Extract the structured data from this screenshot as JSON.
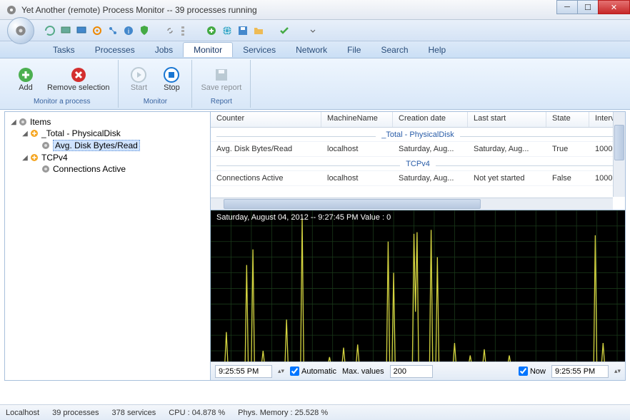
{
  "window": {
    "title": "Yet Another (remote) Process Monitor -- 39 processes running"
  },
  "menubar": {
    "items": [
      "Tasks",
      "Processes",
      "Jobs",
      "Monitor",
      "Services",
      "Network",
      "File",
      "Search",
      "Help"
    ],
    "active_index": 3
  },
  "ribbon": {
    "groups": [
      {
        "label": "Monitor a process",
        "buttons": [
          {
            "label": "Add",
            "icon": "plus-circle",
            "color": "#4caf50",
            "disabled": false
          },
          {
            "label": "Remove selection",
            "icon": "x-circle",
            "color": "#d32f2f",
            "disabled": false
          }
        ]
      },
      {
        "label": "Monitor",
        "buttons": [
          {
            "label": "Start",
            "icon": "play-circle",
            "color": "#90a4ae",
            "disabled": true
          },
          {
            "label": "Stop",
            "icon": "stop-circle",
            "color": "#1976d2",
            "disabled": false
          }
        ]
      },
      {
        "label": "Report",
        "buttons": [
          {
            "label": "Save report",
            "icon": "save",
            "color": "#90a4ae",
            "disabled": true
          }
        ]
      }
    ]
  },
  "tree": {
    "root": "Items",
    "nodes": [
      {
        "label": "_Total - PhysicalDisk",
        "icon": "category",
        "expanded": true,
        "children": [
          {
            "label": "Avg. Disk Bytes/Read",
            "icon": "counter",
            "selected": true
          }
        ]
      },
      {
        "label": "TCPv4",
        "icon": "category",
        "expanded": true,
        "children": [
          {
            "label": "Connections Active",
            "icon": "counter",
            "selected": false
          }
        ]
      }
    ]
  },
  "grid": {
    "columns": [
      "Counter",
      "MachineName",
      "Creation date",
      "Last start",
      "State",
      "Interval"
    ],
    "groups": [
      {
        "name": "_Total - PhysicalDisk",
        "rows": [
          {
            "Counter": "Avg. Disk Bytes/Read",
            "MachineName": "localhost",
            "Creation date": "Saturday, Aug...",
            "Last start": "Saturday, Aug...",
            "State": "True",
            "Interval": "1000"
          }
        ]
      },
      {
        "name": "TCPv4",
        "rows": [
          {
            "Counter": "Connections Active",
            "MachineName": "localhost",
            "Creation date": "Saturday, Aug...",
            "Last start": "Not yet started",
            "State": "False",
            "Interval": "1000"
          }
        ]
      }
    ]
  },
  "chart": {
    "info_text": "Saturday, August 04, 2012 -- 9:27:45 PM  Value : 0",
    "background_color": "#000000",
    "grid_color": "#1a3a1a",
    "line_color": "#d4d440",
    "xlim": [
      0,
      530
    ],
    "ylim": [
      0,
      200
    ],
    "grid_x_step": 26,
    "grid_y_step": 20,
    "series": [
      [
        0,
        198
      ],
      [
        18,
        198
      ],
      [
        20,
        156
      ],
      [
        22,
        198
      ],
      [
        44,
        198
      ],
      [
        46,
        70
      ],
      [
        48,
        198
      ],
      [
        52,
        198
      ],
      [
        54,
        50
      ],
      [
        56,
        198
      ],
      [
        65,
        198
      ],
      [
        67,
        180
      ],
      [
        69,
        198
      ],
      [
        95,
        198
      ],
      [
        97,
        140
      ],
      [
        99,
        198
      ],
      [
        115,
        198
      ],
      [
        117,
        10
      ],
      [
        119,
        198
      ],
      [
        135,
        198
      ],
      [
        150,
        198
      ],
      [
        152,
        188
      ],
      [
        154,
        198
      ],
      [
        168,
        198
      ],
      [
        170,
        176
      ],
      [
        172,
        198
      ],
      [
        186,
        198
      ],
      [
        188,
        172
      ],
      [
        190,
        198
      ],
      [
        225,
        198
      ],
      [
        227,
        40
      ],
      [
        229,
        198
      ],
      [
        232,
        198
      ],
      [
        234,
        80
      ],
      [
        236,
        198
      ],
      [
        258,
        198
      ],
      [
        260,
        30
      ],
      [
        262,
        130
      ],
      [
        264,
        28
      ],
      [
        266,
        198
      ],
      [
        280,
        198
      ],
      [
        282,
        25
      ],
      [
        284,
        198
      ],
      [
        288,
        198
      ],
      [
        290,
        60
      ],
      [
        292,
        198
      ],
      [
        310,
        198
      ],
      [
        312,
        170
      ],
      [
        314,
        198
      ],
      [
        330,
        198
      ],
      [
        332,
        186
      ],
      [
        334,
        198
      ],
      [
        348,
        198
      ],
      [
        350,
        178
      ],
      [
        352,
        198
      ],
      [
        380,
        198
      ],
      [
        382,
        186
      ],
      [
        384,
        198
      ],
      [
        430,
        198
      ],
      [
        490,
        198
      ],
      [
        492,
        32
      ],
      [
        494,
        198
      ],
      [
        500,
        198
      ],
      [
        502,
        170
      ],
      [
        504,
        198
      ],
      [
        530,
        198
      ]
    ]
  },
  "chart_controls": {
    "start_time": "9:25:55 PM",
    "automatic_checked": true,
    "max_values_label": "Max. values",
    "max_values": "200",
    "now_checked": true,
    "now_label": "Now",
    "end_time": "9:25:55 PM",
    "automatic_label": "Automatic"
  },
  "statusbar": {
    "host": "Localhost",
    "processes": "39 processes",
    "services": "378 services",
    "cpu": "CPU : 04.878 %",
    "memory": "Phys. Memory : 25.528 %"
  }
}
